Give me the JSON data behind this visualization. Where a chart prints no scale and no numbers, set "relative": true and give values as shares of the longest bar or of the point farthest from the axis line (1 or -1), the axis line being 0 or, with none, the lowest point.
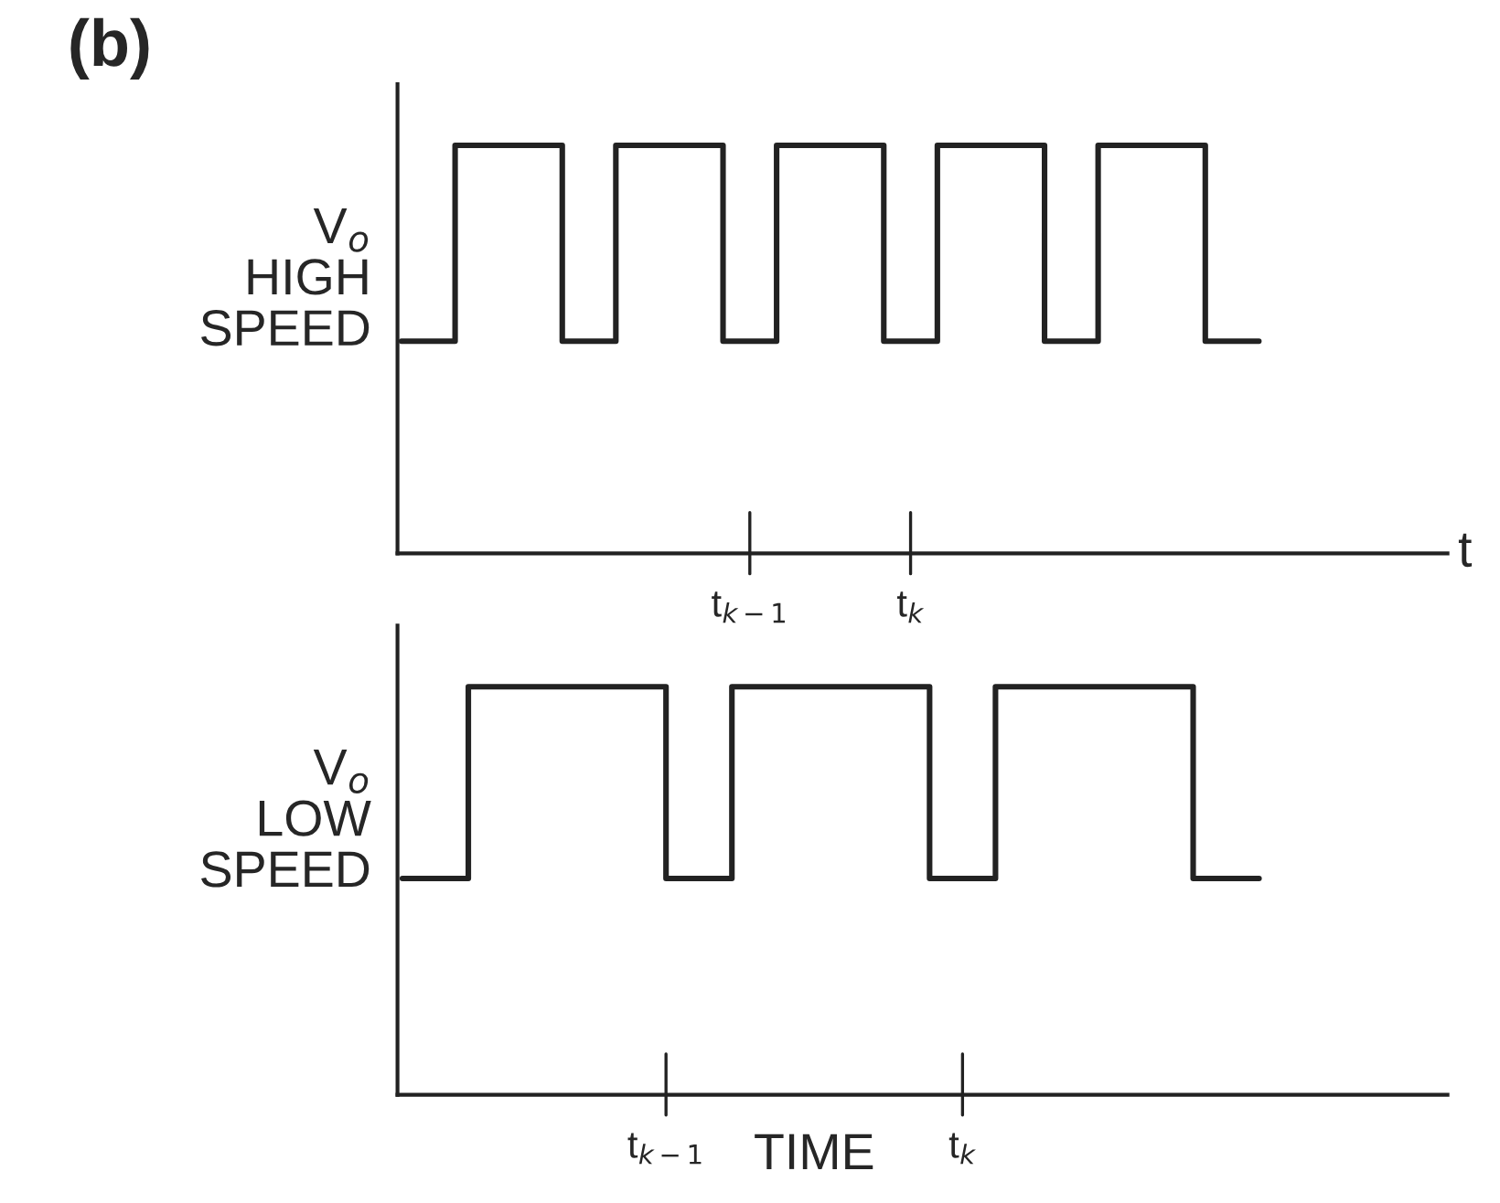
{
  "chart_data": [
    {
      "type": "step",
      "title": "(b)",
      "ylabel": "V$_{o}$\nHIGH\nSPEED",
      "xlabel": "t",
      "relative": true,
      "categories": [
        null,
        null,
        null,
        null,
        null,
        null,
        null,
        null,
        null,
        null,
        null,
        null,
        null,
        "t$_{k−1}$",
        null,
        null,
        null,
        null,
        null,
        "t$_{k}$",
        null,
        null,
        null,
        null,
        null,
        null,
        null,
        null,
        null,
        null,
        null,
        null,
        null
      ],
      "series": [
        {
          "color": "#222222",
          "values": [
            0.52,
            0.52,
            1,
            1,
            1,
            1,
            0.52,
            0.52,
            1,
            1,
            1,
            1,
            0.52,
            0.52,
            1,
            1,
            1,
            1,
            0.52,
            0.52,
            1,
            1,
            1,
            1,
            0.52,
            0.52,
            1,
            1,
            1,
            1,
            0.52,
            0.52,
            0.52
          ]
        }
      ]
    },
    {
      "type": "step",
      "ylabel": "V$_{o}$\nLOW\nSPEED",
      "xlabel": "TIME",
      "relative": true,
      "categories": [
        null,
        null,
        null,
        null,
        null,
        null,
        null,
        null,
        "t$_{k−1}$",
        null,
        null,
        null,
        null,
        null,
        null,
        null,
        null,
        "t$_{k}$",
        null,
        null,
        null,
        null,
        null,
        null,
        null,
        null,
        null
      ],
      "series": [
        {
          "color": "#222222",
          "values": [
            0.53,
            0.53,
            1,
            1,
            1,
            1,
            1,
            1,
            0.53,
            0.53,
            1,
            1,
            1,
            1,
            1,
            1,
            0.53,
            0.53,
            1,
            1,
            1,
            1,
            1,
            1,
            0.53,
            0.53,
            0.53
          ]
        }
      ]
    }
  ]
}
